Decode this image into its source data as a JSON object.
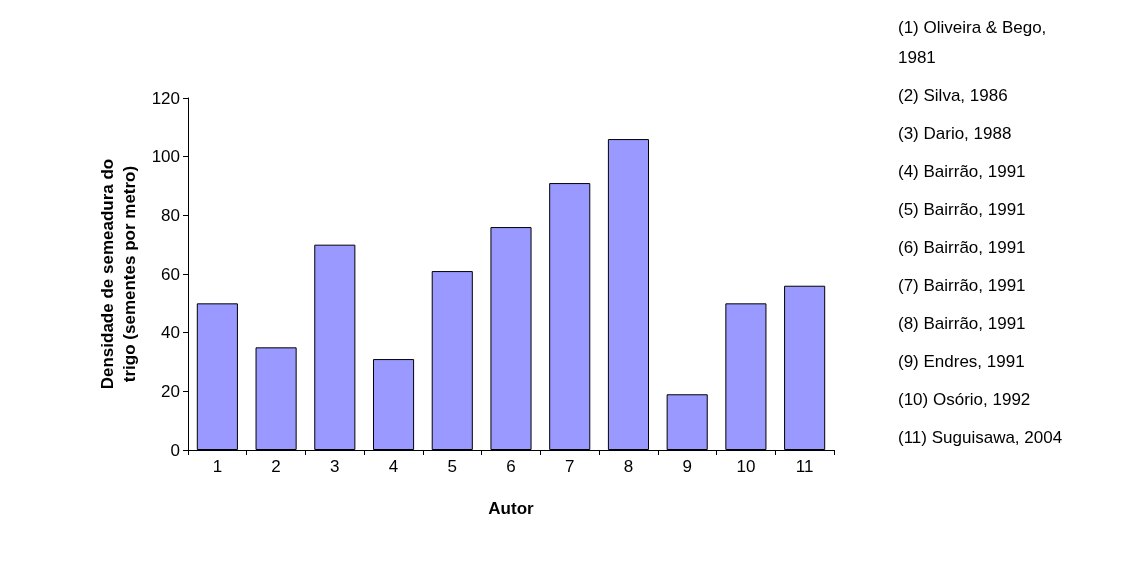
{
  "chart_data": {
    "type": "bar",
    "xlabel": "Autor",
    "ylabel": "Densidade de semeadura do trigo (sementes por metro)",
    "categories": [
      "1",
      "2",
      "3",
      "4",
      "5",
      "6",
      "7",
      "8",
      "9",
      "10",
      "11"
    ],
    "values": [
      50,
      35,
      70,
      31,
      61,
      76,
      91,
      106,
      19,
      50,
      56
    ],
    "color": "#9999ff",
    "ylim": [
      0,
      120
    ],
    "yticks": [
      0,
      20,
      40,
      60,
      80,
      100,
      120
    ],
    "grid": false,
    "annotations": [
      "(1) Oliveira & Bego, 1981",
      "(2) Silva, 1986",
      "(3) Dario, 1988",
      "(4) Bairrão, 1991",
      "(5) Bairrão, 1991",
      "(6) Bairrão, 1991",
      "(7) Bairrão, 1991",
      "(8) Bairrão, 1991",
      "(9) Endres, 1991",
      "(10) Osório, 1992",
      "(11) Suguisawa, 2004"
    ]
  }
}
